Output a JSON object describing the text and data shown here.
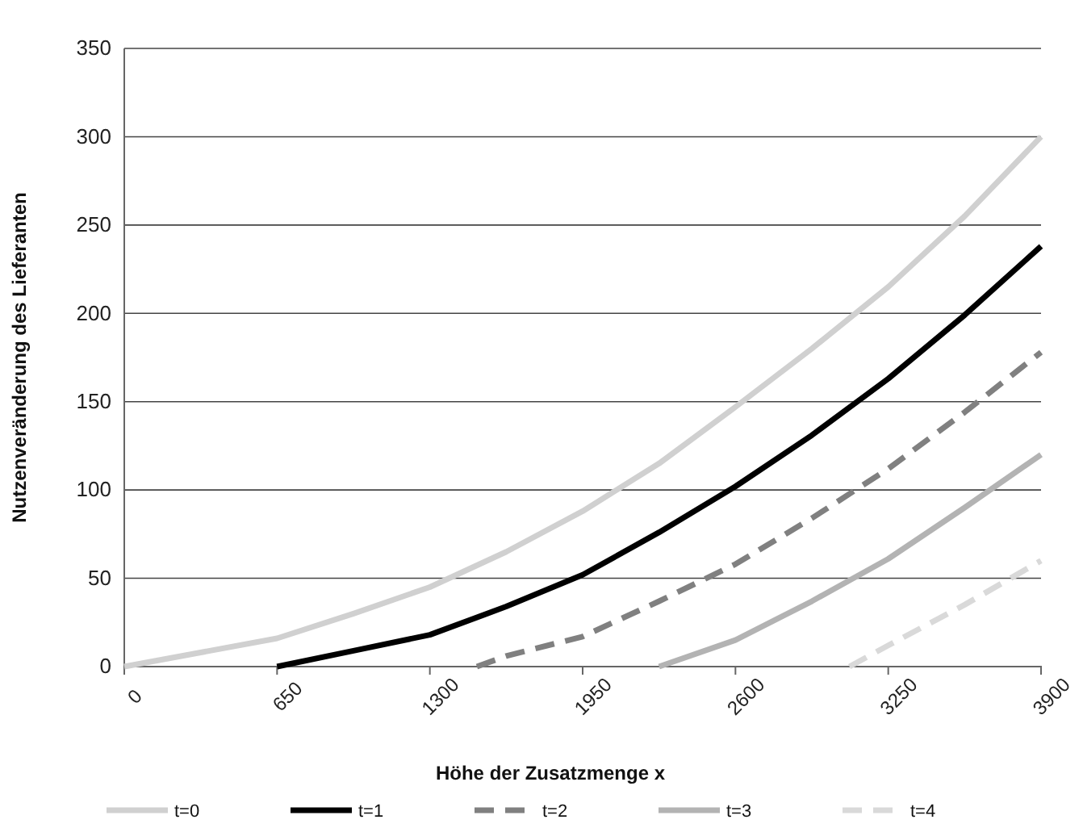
{
  "chart_data": {
    "type": "line",
    "xlabel": "Höhe der Zusatzmenge x",
    "ylabel": "Nutzenveränderung des Lieferanten",
    "xlim": [
      0,
      3900
    ],
    "xticks": [
      0,
      650,
      1300,
      1950,
      2600,
      3250,
      3900
    ],
    "ylim": [
      0,
      350
    ],
    "yticks": [
      0,
      50,
      100,
      150,
      200,
      250,
      300,
      350
    ],
    "grid": "y",
    "legend": "bottom",
    "marker": "none",
    "series": [
      {
        "name": "t=0",
        "color": "#d0d0d0",
        "line_style": "solid",
        "x": [
          0,
          325,
          650,
          975,
          1300,
          1625,
          1950,
          2275,
          2600,
          2925,
          3250,
          3575,
          3900
        ],
        "values": [
          0,
          8,
          16,
          30,
          45,
          65,
          88,
          115,
          147,
          180,
          215,
          255,
          300
        ]
      },
      {
        "name": "t=1",
        "color": "#000000",
        "line_style": "solid",
        "x": [
          650,
          975,
          1300,
          1625,
          1950,
          2275,
          2600,
          2925,
          3250,
          3575,
          3900
        ],
        "values": [
          0,
          9,
          18,
          34,
          52,
          76,
          102,
          131,
          163,
          199,
          238
        ]
      },
      {
        "name": "t=2",
        "color": "#808080",
        "line_style": "dashed",
        "x": [
          1500,
          1625,
          1950,
          2275,
          2600,
          2925,
          3250,
          3575,
          3900
        ],
        "values": [
          0,
          6,
          17,
          37,
          58,
          84,
          112,
          144,
          178
        ]
      },
      {
        "name": "t=3",
        "color": "#b3b3b3",
        "line_style": "solid",
        "x": [
          2275,
          2600,
          2925,
          3250,
          3575,
          3900
        ],
        "values": [
          0,
          15,
          37,
          61,
          90,
          120
        ]
      },
      {
        "name": "t=4",
        "color": "#d9d9d9",
        "line_style": "dashed",
        "x": [
          3085,
          3250,
          3575,
          3900
        ],
        "values": [
          0,
          12,
          35,
          60
        ]
      }
    ]
  }
}
